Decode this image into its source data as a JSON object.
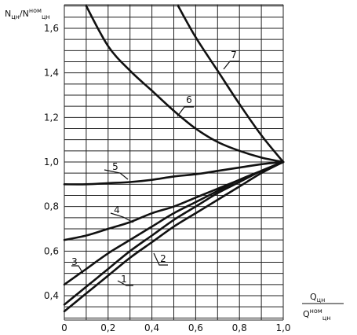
{
  "chart_data": {
    "type": "line",
    "title": "",
    "ylabel": {
      "main": "N",
      "main_sub": "цн",
      "slash": "/N",
      "sup": "ном",
      "sub": "цн"
    },
    "xlabel": {
      "numerator": "Q",
      "numerator_sub": "цн",
      "denominator": "Q",
      "denominator_sup": "ном",
      "denominator_sub": "цн"
    },
    "xlim": [
      0,
      1.0
    ],
    "ylim": [
      0.3,
      1.7
    ],
    "x_tick_labels": [
      "0",
      "0,2",
      "0,4",
      "0,6",
      "0,8",
      "1,0"
    ],
    "y_tick_labels": [
      {
        "v": 0.4,
        "label": "0,4"
      },
      {
        "v": 0.6,
        "label": "0,6"
      },
      {
        "v": 0.8,
        "label": "0,8"
      },
      {
        "v": 1.0,
        "label": "1,0"
      },
      {
        "v": 1.2,
        "label": "1,2"
      },
      {
        "v": 1.4,
        "label": "1,4"
      },
      {
        "v": 1.6,
        "label": "1,6"
      }
    ],
    "grid": true,
    "series": [
      {
        "name": "1",
        "x": [
          0,
          0.1,
          0.2,
          0.3,
          0.4,
          0.5,
          0.6,
          0.7,
          0.8,
          0.9,
          1.0
        ],
        "y": [
          0.33,
          0.41,
          0.49,
          0.57,
          0.64,
          0.71,
          0.77,
          0.83,
          0.89,
          0.95,
          1.0
        ]
      },
      {
        "name": "2",
        "x": [
          0,
          0.1,
          0.2,
          0.3,
          0.4,
          0.5,
          0.6,
          0.7,
          0.8,
          0.9,
          1.0
        ],
        "y": [
          0.36,
          0.44,
          0.52,
          0.6,
          0.67,
          0.74,
          0.8,
          0.86,
          0.91,
          0.96,
          1.0
        ]
      },
      {
        "name": "3",
        "x": [
          0,
          0.1,
          0.2,
          0.3,
          0.4,
          0.5,
          0.6,
          0.7,
          0.8,
          0.9,
          1.0
        ],
        "y": [
          0.45,
          0.52,
          0.59,
          0.65,
          0.71,
          0.77,
          0.82,
          0.87,
          0.92,
          0.96,
          1.0
        ]
      },
      {
        "name": "4",
        "x": [
          0,
          0.1,
          0.2,
          0.3,
          0.4,
          0.5,
          0.6,
          0.7,
          0.8,
          0.9,
          1.0
        ],
        "y": [
          0.65,
          0.67,
          0.7,
          0.73,
          0.77,
          0.8,
          0.84,
          0.88,
          0.92,
          0.96,
          1.0
        ]
      },
      {
        "name": "5",
        "x": [
          0,
          0.1,
          0.2,
          0.3,
          0.4,
          0.5,
          0.6,
          0.7,
          0.8,
          0.9,
          1.0
        ],
        "y": [
          0.9,
          0.9,
          0.905,
          0.91,
          0.92,
          0.935,
          0.945,
          0.96,
          0.975,
          0.99,
          1.0
        ]
      },
      {
        "name": "6",
        "x": [
          0.1,
          0.2,
          0.3,
          0.4,
          0.5,
          0.6,
          0.7,
          0.8,
          0.9,
          1.0
        ],
        "y": [
          1.7,
          1.52,
          1.41,
          1.32,
          1.23,
          1.15,
          1.09,
          1.05,
          1.02,
          1.0
        ]
      },
      {
        "name": "7",
        "x": [
          0.52,
          0.6,
          0.7,
          0.8,
          0.9,
          1.0
        ],
        "y": [
          1.7,
          1.56,
          1.41,
          1.26,
          1.12,
          1.0
        ]
      }
    ]
  }
}
